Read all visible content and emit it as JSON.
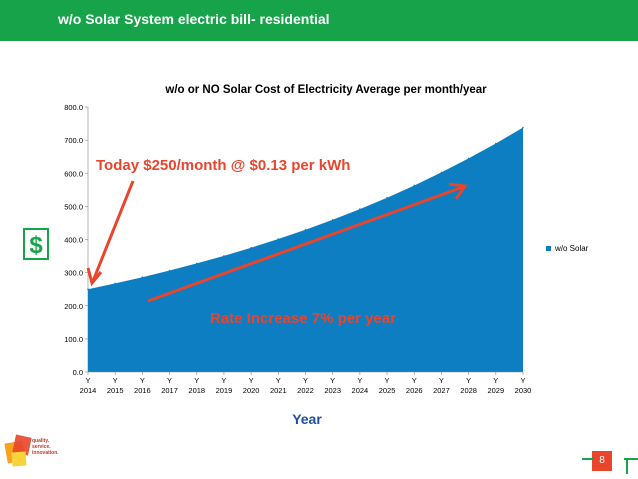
{
  "slide": {
    "title": "w/o Solar System electric bill- residential",
    "page_number": "8",
    "dollar_sign": "$",
    "logo_text": [
      "quality.",
      "service.",
      "innovation."
    ]
  },
  "annotations": {
    "today": "Today $250/month @ $0.13 per kWh",
    "rate": "Rate Increase 7% per year"
  },
  "colors": {
    "brand_green": "#17a34a",
    "area_fill": "#0c7ec1",
    "annotation_red": "#e8452c",
    "axis_title_blue": "#1f4e9a"
  },
  "chart_data": {
    "type": "area",
    "title": "w/o or NO Solar Cost of Electricity Average per month/year",
    "xlabel": "Year",
    "ylabel": "",
    "ylim": [
      0,
      800
    ],
    "yticks": [
      "0.0",
      "100.0",
      "200.0",
      "300.0",
      "400.0",
      "500.0",
      "600.0",
      "700.0",
      "800.0"
    ],
    "grid": false,
    "legend": "right",
    "categories": [
      [
        "Y",
        "2014"
      ],
      [
        "Y",
        "2015"
      ],
      [
        "Y",
        "2016"
      ],
      [
        "Y",
        "2017"
      ],
      [
        "Y",
        "2018"
      ],
      [
        "Y",
        "2019"
      ],
      [
        "Y",
        "2020"
      ],
      [
        "Y",
        "2021"
      ],
      [
        "Y",
        "2022"
      ],
      [
        "Y",
        "2023"
      ],
      [
        "Y",
        "2024"
      ],
      [
        "Y",
        "2025"
      ],
      [
        "Y",
        "2026"
      ],
      [
        "Y",
        "2027"
      ],
      [
        "Y",
        "2028"
      ],
      [
        "Y",
        "2029"
      ],
      [
        "Y",
        "2030"
      ]
    ],
    "series": [
      {
        "name": "w/o Solar",
        "values": [
          250.0,
          267.5,
          286.2,
          306.3,
          327.7,
          350.6,
          375.2,
          401.5,
          429.6,
          459.6,
          491.8,
          526.2,
          563.1,
          602.5,
          644.7,
          689.8,
          738.1
        ]
      }
    ]
  }
}
